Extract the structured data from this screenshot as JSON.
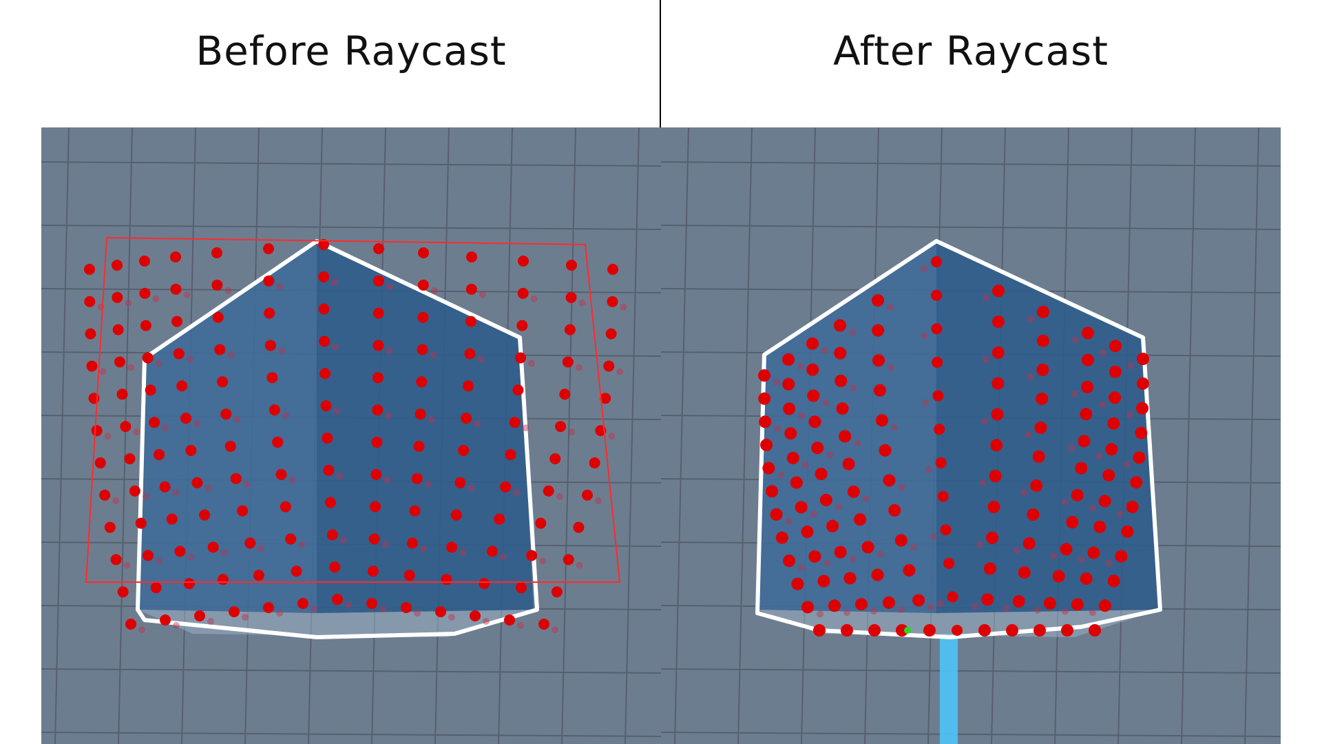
{
  "panels": {
    "left": {
      "title": "Before Raycast"
    },
    "right": {
      "title": "After Raycast"
    }
  },
  "colors": {
    "background": "#ffffff",
    "floor": "#6d7d90",
    "grid_line": "#55606f",
    "cube_face_left": "#3f6c99",
    "cube_face_right": "#2f5d8c",
    "outline": "#ffffff",
    "sample_point": "#dd0000",
    "bounding_box": "#ff2a2a",
    "ray_beam": "#4cc8ff",
    "hit_point": "#22dd22"
  }
}
